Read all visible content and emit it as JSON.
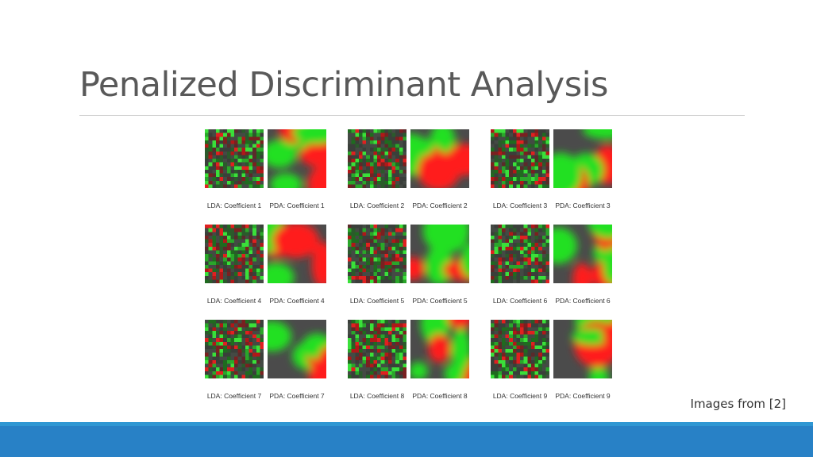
{
  "slide": {
    "title": "Penalized Discriminant Analysis",
    "credit": "Images from [2]"
  },
  "colors": {
    "accent_bar": "#2881c6",
    "accent_bar_light": "#2f97d3",
    "map_red": "#ff1a1a",
    "map_green": "#22e022",
    "map_gray": "#4b4b4b"
  },
  "figures": [
    {
      "lda_label": "LDA: Coefficient 1",
      "pda_label": "PDA: Coefficient 1"
    },
    {
      "lda_label": "LDA: Coefficient 2",
      "pda_label": "PDA: Coefficient 2"
    },
    {
      "lda_label": "LDA: Coefficient 3",
      "pda_label": "PDA: Coefficient 3"
    },
    {
      "lda_label": "LDA: Coefficient 4",
      "pda_label": "PDA: Coefficient 4"
    },
    {
      "lda_label": "LDA: Coefficient 5",
      "pda_label": "PDA: Coefficient 5"
    },
    {
      "lda_label": "LDA: Coefficient 6",
      "pda_label": "PDA: Coefficient 6"
    },
    {
      "lda_label": "LDA: Coefficient 7",
      "pda_label": "PDA: Coefficient 7"
    },
    {
      "lda_label": "LDA: Coefficient 8",
      "pda_label": "PDA: Coefficient 8"
    },
    {
      "lda_label": "LDA: Coefficient 9",
      "pda_label": "PDA: Coefficient 9"
    }
  ]
}
